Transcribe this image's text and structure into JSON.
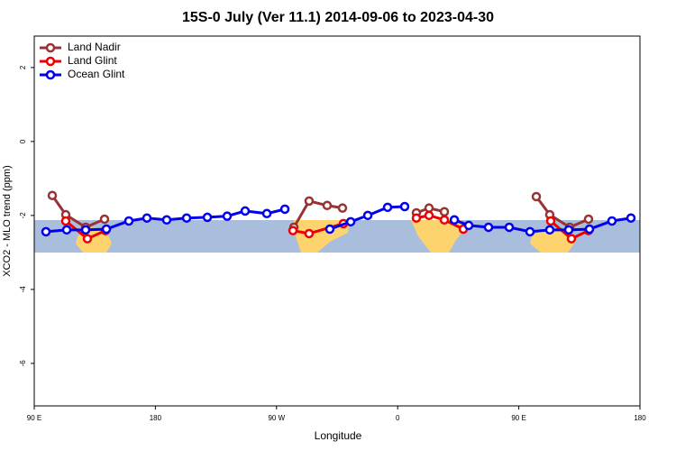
{
  "chart_data": {
    "type": "line",
    "title": "15S-0 July (Ver 11.1)   2014-09-06 to 2023-04-30",
    "xlabel": "Longitude",
    "ylabel": "XCO2 - MLO trend (ppm)",
    "xlim": [
      90,
      540
    ],
    "ylim": [
      -7.15,
      2.85
    ],
    "xticks": [
      {
        "value": 90,
        "label": "90 E"
      },
      180,
      {
        "value": 270,
        "label": "90 W"
      },
      {
        "value": 360,
        "label": "0"
      },
      {
        "value": 450,
        "label": "90 E"
      },
      {
        "value": 540,
        "label": "180"
      }
    ],
    "yticks": [
      2,
      0,
      -2,
      -4,
      -6
    ],
    "legend": "upper left",
    "series": [
      {
        "name": "Land Nadir",
        "color": "#993333",
        "x": [
          103.4,
          113.4,
          128.2,
          142.2,
          null,
          282.9,
          294.2,
          307.6,
          319.0,
          null,
          373.9,
          383.3,
          394.7,
          null,
          463.0,
          473.0,
          487.8,
          501.8
        ],
        "values": [
          -1.46,
          -1.98,
          -2.32,
          -2.1,
          null,
          -2.32,
          -1.61,
          -1.73,
          -1.8,
          null,
          -1.93,
          -1.8,
          -1.9,
          null,
          -1.49,
          -1.98,
          -2.32,
          -2.1
        ]
      },
      {
        "name": "Land Glint",
        "color": "#ee0000",
        "x": [
          113.4,
          129.5,
          142.9,
          null,
          282.2,
          294.2,
          319.7,
          null,
          373.9,
          383.3,
          394.7,
          408.8,
          null,
          473.7,
          489.1,
          501.8
        ],
        "values": [
          -2.15,
          -2.63,
          -2.41,
          null,
          -2.41,
          -2.49,
          -2.22,
          null,
          -2.07,
          -2.0,
          -2.12,
          -2.37,
          null,
          -2.15,
          -2.63,
          -2.41
        ]
      },
      {
        "name": "Ocean Glint",
        "color": "#0000ee",
        "x": [
          98.7,
          114.1,
          128.2,
          143.6,
          160.3,
          173.7,
          188.4,
          203.2,
          218.6,
          233.3,
          246.7,
          262.8,
          276.2,
          null,
          309.6,
          325.1,
          337.8,
          352.5,
          365.2,
          null,
          402.1,
          412.8,
          427.5,
          442.9,
          458.3,
          473.0,
          487.1,
          502.5,
          519.2,
          533.3
        ],
        "values": [
          -2.44,
          -2.39,
          -2.39,
          -2.37,
          -2.15,
          -2.07,
          -2.12,
          -2.07,
          -2.05,
          -2.02,
          -1.88,
          -1.95,
          -1.83,
          null,
          -2.37,
          -2.17,
          -2.0,
          -1.78,
          -1.76,
          null,
          -2.12,
          -2.27,
          -2.32,
          -2.32,
          -2.44,
          -2.39,
          -2.39,
          -2.37,
          -2.15,
          -2.07
        ]
      }
    ]
  }
}
